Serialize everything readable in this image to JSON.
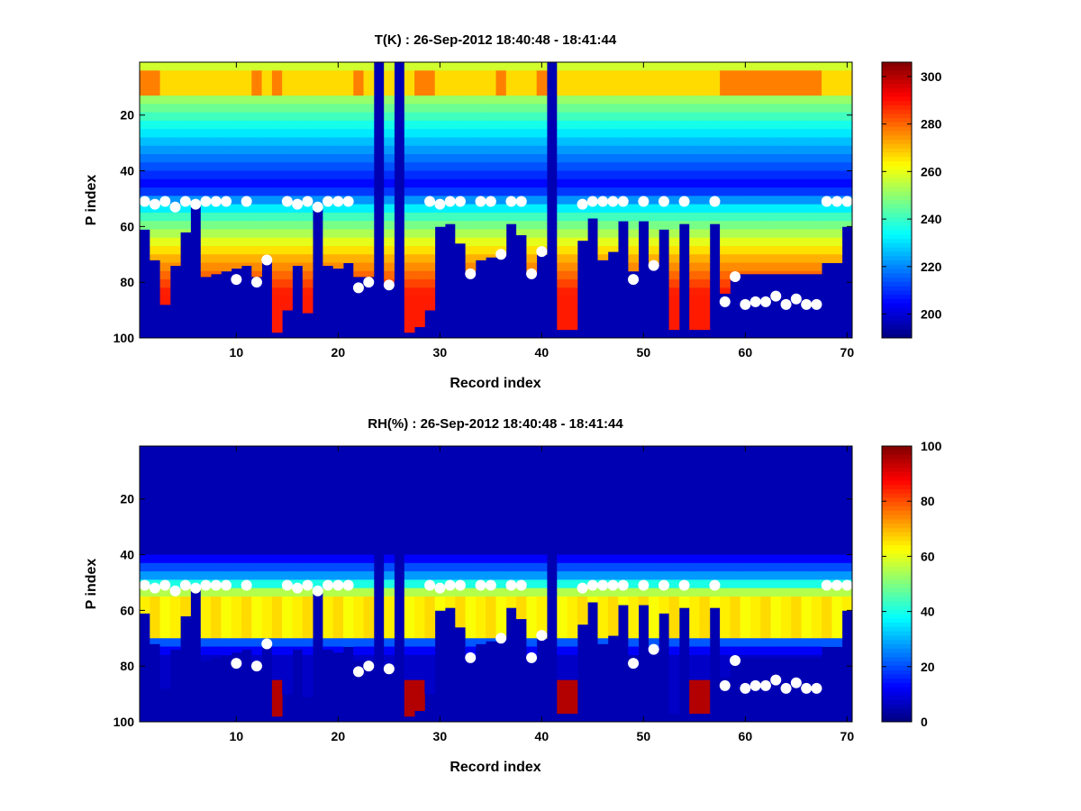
{
  "chart_data": [
    {
      "type": "heatmap",
      "title": "T(K) : 26-Sep-2012 18:40:48 - 18:41:44",
      "xlabel": "Record index",
      "ylabel": "P index",
      "xlim": [
        0.5,
        70.5
      ],
      "ylim": [
        100,
        1
      ],
      "y_direction": "reversed",
      "x_ticks": [
        10,
        20,
        30,
        40,
        50,
        60,
        70
      ],
      "x_tick_labels": [
        "10",
        "20",
        "30",
        "40",
        "50",
        "60",
        "70"
      ],
      "y_ticks": [
        20,
        40,
        60,
        80,
        100
      ],
      "y_tick_labels": [
        "20",
        "40",
        "60",
        "80",
        "100"
      ],
      "colorbar": {
        "range": [
          190,
          306
        ],
        "ticks": [
          200,
          220,
          240,
          260,
          280,
          300
        ],
        "tick_labels": [
          "200",
          "220",
          "240",
          "260",
          "280",
          "300"
        ],
        "colormap": "jet"
      },
      "full_missing_records": [
        24,
        26,
        41
      ],
      "surface_level_by_record": [
        61,
        72,
        88,
        74,
        62,
        52,
        78,
        77,
        76,
        75,
        74,
        78,
        72,
        98,
        90,
        74,
        91,
        52,
        74,
        75,
        73,
        78,
        78,
        100,
        80,
        100,
        98,
        96,
        90,
        60,
        59,
        66,
        76,
        72,
        71,
        70,
        59,
        63,
        77,
        70,
        100,
        97,
        97,
        65,
        57,
        72,
        69,
        58,
        76,
        58,
        74,
        61,
        97,
        59,
        97,
        97,
        59,
        84,
        77,
        77,
        77,
        77,
        77,
        77,
        77,
        77,
        77,
        73,
        73,
        60
      ],
      "marker_level_by_record": [
        51,
        52,
        51,
        53,
        51,
        52,
        51,
        51,
        51,
        79,
        51,
        80,
        72,
        null,
        51,
        52,
        51,
        53,
        51,
        51,
        51,
        82,
        80,
        null,
        81,
        null,
        null,
        null,
        51,
        52,
        51,
        51,
        77,
        51,
        51,
        70,
        51,
        51,
        77,
        69,
        null,
        null,
        null,
        52,
        51,
        51,
        51,
        51,
        79,
        51,
        74,
        51,
        null,
        51,
        null,
        null,
        51,
        87,
        78,
        88,
        87,
        87,
        85,
        88,
        86,
        88,
        88,
        51,
        51,
        51
      ]
    },
    {
      "type": "heatmap",
      "title": "RH(%) : 26-Sep-2012 18:40:48 - 18:41:44",
      "xlabel": "Record index",
      "ylabel": "P index",
      "xlim": [
        0.5,
        70.5
      ],
      "ylim": [
        100,
        1
      ],
      "y_direction": "reversed",
      "x_ticks": [
        10,
        20,
        30,
        40,
        50,
        60,
        70
      ],
      "x_tick_labels": [
        "10",
        "20",
        "30",
        "40",
        "50",
        "60",
        "70"
      ],
      "y_ticks": [
        20,
        40,
        60,
        80,
        100
      ],
      "y_tick_labels": [
        "20",
        "40",
        "60",
        "80",
        "100"
      ],
      "colorbar": {
        "range": [
          0,
          100
        ],
        "ticks": [
          0,
          20,
          40,
          60,
          80,
          100
        ],
        "tick_labels": [
          "0",
          "20",
          "40",
          "60",
          "80",
          "100"
        ],
        "colormap": "jet"
      },
      "full_missing_records": [
        24,
        26,
        41
      ],
      "surface_level_by_record": [
        61,
        72,
        88,
        74,
        62,
        52,
        78,
        77,
        76,
        75,
        74,
        78,
        72,
        98,
        90,
        74,
        91,
        52,
        74,
        75,
        73,
        78,
        78,
        100,
        80,
        100,
        98,
        96,
        90,
        60,
        59,
        66,
        76,
        72,
        71,
        70,
        59,
        63,
        77,
        70,
        100,
        97,
        97,
        65,
        57,
        72,
        69,
        58,
        76,
        58,
        74,
        61,
        97,
        59,
        97,
        97,
        59,
        84,
        77,
        77,
        77,
        77,
        77,
        77,
        77,
        77,
        77,
        73,
        73,
        60
      ],
      "marker_level_by_record": [
        51,
        52,
        51,
        53,
        51,
        52,
        51,
        51,
        51,
        79,
        51,
        80,
        72,
        null,
        51,
        52,
        51,
        53,
        51,
        51,
        51,
        82,
        80,
        null,
        81,
        null,
        null,
        null,
        51,
        52,
        51,
        51,
        77,
        51,
        51,
        70,
        51,
        51,
        77,
        69,
        null,
        null,
        null,
        52,
        51,
        51,
        51,
        51,
        79,
        51,
        74,
        51,
        null,
        51,
        null,
        null,
        51,
        87,
        78,
        88,
        87,
        87,
        85,
        88,
        86,
        88,
        88,
        51,
        51,
        51
      ]
    }
  ]
}
